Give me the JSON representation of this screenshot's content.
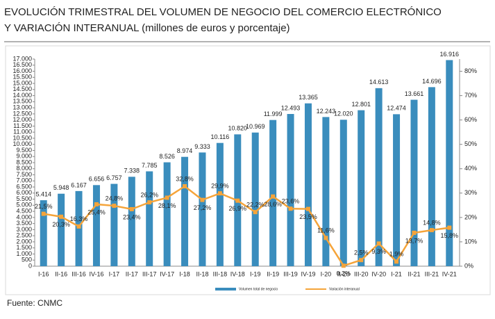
{
  "chart_data": {
    "type": "bar_line",
    "title": "EVOLUCIÓN TRIMESTRAL DEL VOLUMEN DE NEGOCIO DEL COMERCIO ELECTRÓNICO",
    "subtitle": "Y VARIACIÓN INTERANUAL (millones de euros y porcentaje)",
    "source": "Fuente: CNMC",
    "categories": [
      "I-16",
      "II-16",
      "III-16",
      "IV-16",
      "I-17",
      "II-17",
      "III-17",
      "IV-17",
      "I-18",
      "II-18",
      "III-18",
      "IV-18",
      "I-19",
      "II-19",
      "III-19",
      "IV-19",
      "I-20",
      "II-20",
      "III-20",
      "IV-20",
      "I-21",
      "II-21",
      "III-21",
      "IV-21"
    ],
    "series": [
      {
        "name": "Volumen total de negocio",
        "type": "bar",
        "color": "#3a8dbd",
        "values": [
          5414,
          5948,
          6167,
          6656,
          6757,
          7338,
          7785,
          8526,
          8974,
          9333,
          10116,
          10820,
          10969,
          11999,
          12493,
          13365,
          12243,
          12020,
          12801,
          14613,
          12474,
          13661,
          14696,
          16916
        ],
        "value_labels": [
          "5.414",
          "5.948",
          "6.167",
          "6.656",
          "6.757",
          "7.338",
          "7.785",
          "8.526",
          "8.974",
          "9.333",
          "10.116",
          "10.820",
          "10.969",
          "11.999",
          "12.493",
          "13.365",
          "12.243",
          "12.020",
          "12.801",
          "14.613",
          "12.474",
          "13.661",
          "14.696",
          "16.916"
        ]
      },
      {
        "name": "Variación interanual",
        "type": "line",
        "axis": "y2",
        "color": "#f5a43a",
        "values": [
          21.5,
          20.3,
          16.3,
          25.4,
          24.8,
          23.4,
          26.2,
          28.1,
          32.8,
          27.2,
          29.9,
          26.9,
          22.2,
          28.6,
          23.6,
          23.5,
          11.6,
          0.2,
          2.5,
          9.3,
          1.9,
          13.7,
          14.8,
          15.8
        ],
        "value_labels": [
          "21,5%",
          "20,3%",
          "16,3%",
          "25,4%",
          "24,8%",
          "23,4%",
          "26,2%",
          "28,1%",
          "32,8%",
          "27,2%",
          "29,9%",
          "26,9%",
          "22,2%",
          "28,6%",
          "23,6%",
          "23,5%",
          "11,6%",
          "0,2%",
          "2,5%",
          "9,3%",
          "1,9%",
          "13,7%",
          "14,8%",
          "15,8%"
        ]
      }
    ],
    "ylim": [
      0,
      17000
    ],
    "yticks": [
      0,
      500,
      {
        "value": 1000,
        "label": "1.000"
      },
      {
        "value": 1500,
        "label": "1.500"
      },
      {
        "value": 2000,
        "label": "2.000"
      },
      {
        "value": 2500,
        "label": "2.500"
      },
      {
        "value": 3000,
        "label": "3.000"
      },
      {
        "value": 3500,
        "label": "3.500"
      },
      {
        "value": 4000,
        "label": "4.000"
      },
      {
        "value": 4500,
        "label": "4.500"
      },
      {
        "value": 5000,
        "label": "5.000"
      },
      {
        "value": 5500,
        "label": "5.500"
      },
      {
        "value": 6000,
        "label": "6.000"
      },
      {
        "value": 6500,
        "label": "6.500"
      },
      {
        "value": 7000,
        "label": "7.000"
      },
      {
        "value": 7500,
        "label": "7.500"
      },
      {
        "value": 8000,
        "label": "8.000"
      },
      {
        "value": 8500,
        "label": "8.500"
      },
      {
        "value": 9000,
        "label": "9.000"
      },
      {
        "value": 9500,
        "label": "9.500"
      },
      {
        "value": 10000,
        "label": "10.000"
      },
      {
        "value": 10500,
        "label": "10.500"
      },
      {
        "value": 11000,
        "label": "11.000"
      },
      {
        "value": 11500,
        "label": "11.500"
      },
      {
        "value": 12000,
        "label": "12.000"
      },
      {
        "value": 12500,
        "label": "12.500"
      },
      {
        "value": 13000,
        "label": "13.000"
      },
      {
        "value": 13500,
        "label": "13.500"
      },
      {
        "value": 14000,
        "label": "14.000"
      },
      {
        "value": 14500,
        "label": "14.500"
      },
      {
        "value": 15000,
        "label": "15.000"
      },
      {
        "value": 15500,
        "label": "15.500"
      },
      {
        "value": 16000,
        "label": "16.000"
      },
      {
        "value": 16500,
        "label": "16.500"
      },
      {
        "value": 17000,
        "label": "17.000"
      }
    ],
    "y2lim": [
      0,
      85
    ],
    "y2ticks": [
      {
        "value": 0,
        "label": "0%"
      },
      {
        "value": 10,
        "label": "10%"
      },
      {
        "value": 20,
        "label": "20%"
      },
      {
        "value": 30,
        "label": "30%"
      },
      {
        "value": 40,
        "label": "40%"
      },
      {
        "value": 50,
        "label": "50%"
      },
      {
        "value": 60,
        "label": "60%"
      },
      {
        "value": 70,
        "label": "70%"
      },
      {
        "value": 80,
        "label": "80%"
      }
    ],
    "legend": "bottom"
  }
}
